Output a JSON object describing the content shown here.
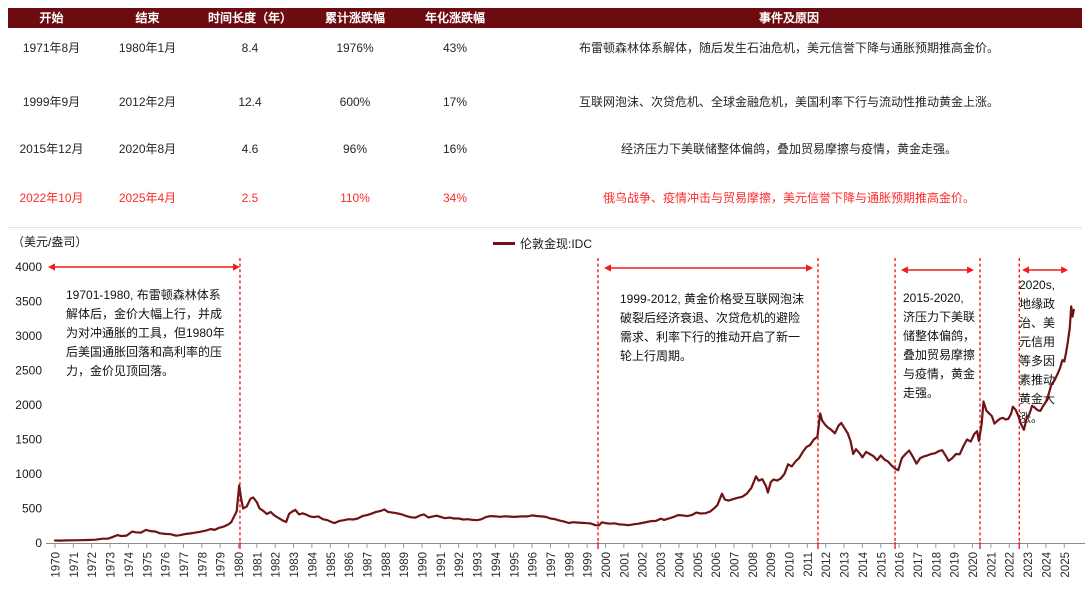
{
  "colors": {
    "maroon": "#6D0C10",
    "chart_line": "#6F1315",
    "chart_red": "#F21C1C",
    "table_red": "#FB2B2B"
  },
  "table": {
    "headers": [
      "开始",
      "结束",
      "时间长度（年）",
      "累计涨跌幅",
      "年化涨跌幅",
      "事件及原因"
    ],
    "rows": [
      {
        "cells": [
          "1971年8月",
          "1980年1月",
          "8.4",
          "1976%",
          "43%",
          "布雷顿森林体系解体，随后发生石油危机，美元信誉下降与通胀预期推高金价。"
        ],
        "highlight": false
      },
      {
        "cells": [
          "1999年9月",
          "2012年2月",
          "12.4",
          "600%",
          "17%",
          "互联网泡沫、次贷危机、全球金融危机，美国利率下行与流动性推动黄金上涨。"
        ],
        "highlight": false
      },
      {
        "cells": [
          "2015年12月",
          "2020年8月",
          "4.6",
          "96%",
          "16%",
          "经济压力下美联储整体偏鸽，叠加贸易摩擦与疫情，黄金走强。"
        ],
        "highlight": false
      },
      {
        "cells": [
          "2022年10月",
          "2025年4月",
          "2.5",
          "110%",
          "34%",
          "俄乌战争、疫情冲击与贸易摩擦，美元信誉下降与通胀预期推高金价。"
        ],
        "highlight": true
      }
    ]
  },
  "annotations": [
    {
      "text": "19701-1980, 布雷顿森林体系解体后，金价大幅上行，并成为对冲通胀的工具，但1980年后美国通胀回落和高利率的压力，金价见顶回落。"
    },
    {
      "text": "1999-2012, 黄金价格受互联网泡沫破裂后经济衰退、次贷危机的避险需求、利率下行的推动开启了新一轮上行周期。"
    },
    {
      "text": "2015-2020, 济压力下美联储整体偏鸽，叠加贸易摩擦与疫情，黄金走强。"
    },
    {
      "text": "2020s, 地缘政治、美元信用等多因素推动黄金大涨。"
    }
  ],
  "chart_data": {
    "type": "line",
    "unit_label": "（美元/盎司）",
    "legend_label": "伦敦金现:IDC",
    "xlabel": "",
    "ylabel": "美元/盎司",
    "xlim": [
      1969.5,
      2026.0
    ],
    "ylim": [
      0,
      4000
    ],
    "grid": false,
    "legend_position": "top-center",
    "y_ticks": [
      0,
      500,
      1000,
      1500,
      2000,
      2500,
      3000,
      3500,
      4000
    ],
    "x_ticks": [
      1970,
      1971,
      1972,
      1973,
      1974,
      1975,
      1976,
      1977,
      1978,
      1979,
      1980,
      1981,
      1982,
      1983,
      1984,
      1985,
      1986,
      1987,
      1988,
      1989,
      1990,
      1991,
      1992,
      1993,
      1994,
      1995,
      1996,
      1997,
      1998,
      1999,
      2000,
      2001,
      2002,
      2003,
      2004,
      2005,
      2006,
      2007,
      2008,
      2009,
      2010,
      2011,
      2012,
      2013,
      2014,
      2015,
      2016,
      2017,
      2018,
      2019,
      2020,
      2021,
      2022,
      2023,
      2024,
      2025
    ],
    "marker_years": [
      1980.08,
      1999.59,
      2011.58,
      2015.78,
      2020.41,
      2022.55
    ],
    "period_arrows": [
      {
        "from": 1969.62,
        "to": 1980.08
      },
      {
        "from": 1999.92,
        "to": 2011.31
      },
      {
        "from": 2016.1,
        "to": 2020.08
      },
      {
        "from": 2022.7,
        "to": 2025.21
      }
    ],
    "series": [
      {
        "name": "伦敦金现:IDC",
        "color": "#6F1315",
        "points": [
          [
            1970.0,
            36
          ],
          [
            1970.3,
            35
          ],
          [
            1970.6,
            37
          ],
          [
            1971.0,
            39
          ],
          [
            1971.4,
            40
          ],
          [
            1971.8,
            43
          ],
          [
            1972.2,
            48
          ],
          [
            1972.6,
            62
          ],
          [
            1972.9,
            64
          ],
          [
            1973.1,
            83
          ],
          [
            1973.4,
            115
          ],
          [
            1973.6,
            102
          ],
          [
            1973.9,
            107
          ],
          [
            1974.2,
            165
          ],
          [
            1974.4,
            155
          ],
          [
            1974.7,
            150
          ],
          [
            1974.95,
            190
          ],
          [
            1975.2,
            172
          ],
          [
            1975.5,
            165
          ],
          [
            1975.7,
            142
          ],
          [
            1976.0,
            132
          ],
          [
            1976.3,
            128
          ],
          [
            1976.6,
            106
          ],
          [
            1976.8,
            113
          ],
          [
            1977.1,
            130
          ],
          [
            1977.5,
            143
          ],
          [
            1977.9,
            162
          ],
          [
            1978.2,
            178
          ],
          [
            1978.5,
            203
          ],
          [
            1978.7,
            190
          ],
          [
            1978.95,
            220
          ],
          [
            1979.2,
            238
          ],
          [
            1979.45,
            270
          ],
          [
            1979.6,
            300
          ],
          [
            1979.75,
            380
          ],
          [
            1979.9,
            460
          ],
          [
            1980.04,
            835
          ],
          [
            1980.15,
            630
          ],
          [
            1980.25,
            500
          ],
          [
            1980.45,
            530
          ],
          [
            1980.65,
            640
          ],
          [
            1980.8,
            660
          ],
          [
            1981.0,
            590
          ],
          [
            1981.15,
            500
          ],
          [
            1981.35,
            465
          ],
          [
            1981.55,
            420
          ],
          [
            1981.75,
            450
          ],
          [
            1981.95,
            400
          ],
          [
            1982.2,
            360
          ],
          [
            1982.45,
            320
          ],
          [
            1982.6,
            305
          ],
          [
            1982.75,
            420
          ],
          [
            1982.9,
            450
          ],
          [
            1983.1,
            480
          ],
          [
            1983.3,
            415
          ],
          [
            1983.5,
            430
          ],
          [
            1983.7,
            410
          ],
          [
            1983.9,
            385
          ],
          [
            1984.1,
            375
          ],
          [
            1984.35,
            385
          ],
          [
            1984.6,
            345
          ],
          [
            1984.85,
            330
          ],
          [
            1985.1,
            300
          ],
          [
            1985.25,
            290
          ],
          [
            1985.5,
            320
          ],
          [
            1985.75,
            330
          ],
          [
            1986.0,
            345
          ],
          [
            1986.25,
            340
          ],
          [
            1986.5,
            355
          ],
          [
            1986.75,
            390
          ],
          [
            1987.0,
            405
          ],
          [
            1987.25,
            425
          ],
          [
            1987.5,
            450
          ],
          [
            1987.75,
            465
          ],
          [
            1987.95,
            485
          ],
          [
            1988.15,
            450
          ],
          [
            1988.4,
            440
          ],
          [
            1988.65,
            430
          ],
          [
            1988.9,
            415
          ],
          [
            1989.15,
            390
          ],
          [
            1989.4,
            372
          ],
          [
            1989.65,
            368
          ],
          [
            1989.9,
            400
          ],
          [
            1990.1,
            415
          ],
          [
            1990.35,
            370
          ],
          [
            1990.6,
            385
          ],
          [
            1990.8,
            395
          ],
          [
            1991.0,
            380
          ],
          [
            1991.25,
            360
          ],
          [
            1991.5,
            368
          ],
          [
            1991.75,
            355
          ],
          [
            1992.0,
            355
          ],
          [
            1992.25,
            340
          ],
          [
            1992.5,
            345
          ],
          [
            1992.75,
            335
          ],
          [
            1993.0,
            330
          ],
          [
            1993.25,
            345
          ],
          [
            1993.5,
            378
          ],
          [
            1993.75,
            390
          ],
          [
            1994.0,
            385
          ],
          [
            1994.25,
            380
          ],
          [
            1994.5,
            387
          ],
          [
            1994.75,
            384
          ],
          [
            1995.0,
            378
          ],
          [
            1995.25,
            382
          ],
          [
            1995.5,
            387
          ],
          [
            1995.75,
            385
          ],
          [
            1996.0,
            400
          ],
          [
            1996.25,
            392
          ],
          [
            1996.5,
            385
          ],
          [
            1996.75,
            378
          ],
          [
            1997.0,
            355
          ],
          [
            1997.25,
            345
          ],
          [
            1997.5,
            325
          ],
          [
            1997.75,
            310
          ],
          [
            1998.0,
            290
          ],
          [
            1998.25,
            301
          ],
          [
            1998.5,
            295
          ],
          [
            1998.75,
            292
          ],
          [
            1999.0,
            287
          ],
          [
            1999.2,
            282
          ],
          [
            1999.45,
            258
          ],
          [
            1999.65,
            256
          ],
          [
            1999.8,
            300
          ],
          [
            2000.0,
            288
          ],
          [
            2000.25,
            280
          ],
          [
            2000.5,
            285
          ],
          [
            2000.75,
            270
          ],
          [
            2001.0,
            265
          ],
          [
            2001.25,
            258
          ],
          [
            2001.5,
            270
          ],
          [
            2001.75,
            278
          ],
          [
            2002.0,
            290
          ],
          [
            2002.25,
            305
          ],
          [
            2002.5,
            318
          ],
          [
            2002.75,
            320
          ],
          [
            2003.0,
            352
          ],
          [
            2003.2,
            335
          ],
          [
            2003.45,
            355
          ],
          [
            2003.7,
            375
          ],
          [
            2003.95,
            405
          ],
          [
            2004.2,
            400
          ],
          [
            2004.45,
            390
          ],
          [
            2004.7,
            405
          ],
          [
            2004.95,
            440
          ],
          [
            2005.2,
            428
          ],
          [
            2005.45,
            432
          ],
          [
            2005.7,
            455
          ],
          [
            2005.95,
            510
          ],
          [
            2006.1,
            550
          ],
          [
            2006.35,
            715
          ],
          [
            2006.5,
            630
          ],
          [
            2006.7,
            615
          ],
          [
            2006.95,
            635
          ],
          [
            2007.2,
            655
          ],
          [
            2007.45,
            670
          ],
          [
            2007.7,
            715
          ],
          [
            2007.95,
            800
          ],
          [
            2008.2,
            965
          ],
          [
            2008.35,
            905
          ],
          [
            2008.55,
            925
          ],
          [
            2008.75,
            820
          ],
          [
            2008.85,
            730
          ],
          [
            2009.0,
            880
          ],
          [
            2009.15,
            920
          ],
          [
            2009.35,
            905
          ],
          [
            2009.55,
            935
          ],
          [
            2009.75,
            1000
          ],
          [
            2009.95,
            1140
          ],
          [
            2010.15,
            1110
          ],
          [
            2010.35,
            1180
          ],
          [
            2010.55,
            1230
          ],
          [
            2010.75,
            1320
          ],
          [
            2010.95,
            1390
          ],
          [
            2011.15,
            1420
          ],
          [
            2011.35,
            1500
          ],
          [
            2011.55,
            1540
          ],
          [
            2011.7,
            1880
          ],
          [
            2011.8,
            1780
          ],
          [
            2011.95,
            1720
          ],
          [
            2012.1,
            1680
          ],
          [
            2012.3,
            1640
          ],
          [
            2012.5,
            1590
          ],
          [
            2012.7,
            1700
          ],
          [
            2012.85,
            1740
          ],
          [
            2013.0,
            1675
          ],
          [
            2013.2,
            1590
          ],
          [
            2013.35,
            1480
          ],
          [
            2013.5,
            1290
          ],
          [
            2013.65,
            1360
          ],
          [
            2013.85,
            1300
          ],
          [
            2014.0,
            1240
          ],
          [
            2014.2,
            1320
          ],
          [
            2014.4,
            1290
          ],
          [
            2014.6,
            1260
          ],
          [
            2014.8,
            1200
          ],
          [
            2015.0,
            1270
          ],
          [
            2015.2,
            1210
          ],
          [
            2015.4,
            1180
          ],
          [
            2015.6,
            1120
          ],
          [
            2015.8,
            1075
          ],
          [
            2015.95,
            1055
          ],
          [
            2016.15,
            1230
          ],
          [
            2016.35,
            1290
          ],
          [
            2016.55,
            1340
          ],
          [
            2016.75,
            1250
          ],
          [
            2016.95,
            1150
          ],
          [
            2017.15,
            1230
          ],
          [
            2017.35,
            1255
          ],
          [
            2017.55,
            1270
          ],
          [
            2017.75,
            1290
          ],
          [
            2017.95,
            1300
          ],
          [
            2018.15,
            1330
          ],
          [
            2018.35,
            1345
          ],
          [
            2018.55,
            1260
          ],
          [
            2018.7,
            1190
          ],
          [
            2018.9,
            1230
          ],
          [
            2019.1,
            1290
          ],
          [
            2019.3,
            1285
          ],
          [
            2019.5,
            1400
          ],
          [
            2019.7,
            1500
          ],
          [
            2019.9,
            1470
          ],
          [
            2020.1,
            1580
          ],
          [
            2020.25,
            1620
          ],
          [
            2020.35,
            1480
          ],
          [
            2020.5,
            1730
          ],
          [
            2020.6,
            2050
          ],
          [
            2020.75,
            1920
          ],
          [
            2020.9,
            1880
          ],
          [
            2021.05,
            1840
          ],
          [
            2021.2,
            1730
          ],
          [
            2021.35,
            1770
          ],
          [
            2021.5,
            1800
          ],
          [
            2021.65,
            1815
          ],
          [
            2021.8,
            1790
          ],
          [
            2021.95,
            1800
          ],
          [
            2022.1,
            1870
          ],
          [
            2022.2,
            1975
          ],
          [
            2022.35,
            1930
          ],
          [
            2022.5,
            1840
          ],
          [
            2022.65,
            1720
          ],
          [
            2022.8,
            1640
          ],
          [
            2022.95,
            1800
          ],
          [
            2023.1,
            1870
          ],
          [
            2023.25,
            1990
          ],
          [
            2023.4,
            1960
          ],
          [
            2023.55,
            1925
          ],
          [
            2023.7,
            1915
          ],
          [
            2023.85,
            1985
          ],
          [
            2024.0,
            2045
          ],
          [
            2024.15,
            2160
          ],
          [
            2024.3,
            2300
          ],
          [
            2024.45,
            2350
          ],
          [
            2024.6,
            2430
          ],
          [
            2024.75,
            2520
          ],
          [
            2024.9,
            2650
          ],
          [
            2025.0,
            2630
          ],
          [
            2025.1,
            2760
          ],
          [
            2025.2,
            2920
          ],
          [
            2025.3,
            3120
          ],
          [
            2025.38,
            3430
          ],
          [
            2025.45,
            3280
          ],
          [
            2025.52,
            3380
          ]
        ]
      }
    ]
  }
}
